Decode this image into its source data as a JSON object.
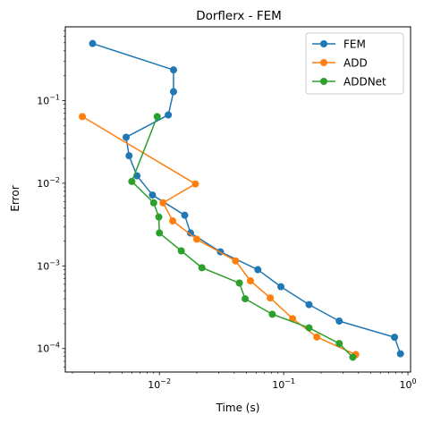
{
  "chart_data": {
    "type": "line",
    "title": "Dorflerx - FEM",
    "xlabel": "Time (s)",
    "ylabel": "Error",
    "xscale": "log",
    "yscale": "log",
    "xlim": [
      0.00175,
      1.05
    ],
    "ylim": [
      5.2e-05,
      0.78
    ],
    "grid": false,
    "legend_position": "top-right",
    "x_ticks": [
      {
        "value": 0.01,
        "base": "10",
        "exp": "−2"
      },
      {
        "value": 0.1,
        "base": "10",
        "exp": "−1"
      },
      {
        "value": 1,
        "base": "10",
        "exp": "0"
      }
    ],
    "y_ticks": [
      {
        "value": 0.0001,
        "base": "10",
        "exp": "−4"
      },
      {
        "value": 0.001,
        "base": "10",
        "exp": "−3"
      },
      {
        "value": 0.01,
        "base": "10",
        "exp": "−2"
      },
      {
        "value": 0.1,
        "base": "10",
        "exp": "−1"
      }
    ],
    "series": [
      {
        "name": "FEM",
        "color": "#1f77b4",
        "x": [
          0.0029,
          0.013,
          0.013,
          0.0118,
          0.0054,
          0.0057,
          0.0066,
          0.0088,
          0.016,
          0.0178,
          0.031,
          0.062,
          0.095,
          0.16,
          0.28,
          0.78,
          0.87
        ],
        "y": [
          0.49,
          0.235,
          0.128,
          0.067,
          0.036,
          0.0215,
          0.0123,
          0.0072,
          0.0041,
          0.0025,
          0.00148,
          0.0009,
          0.00056,
          0.00034,
          0.000215,
          0.000137,
          8.65e-05
        ]
      },
      {
        "name": "ADD",
        "color": "#ff7f0e",
        "x": [
          0.0024,
          0.0195,
          0.0107,
          0.0128,
          0.02,
          0.041,
          0.054,
          0.078,
          0.118,
          0.185,
          0.38
        ],
        "y": [
          0.064,
          0.0098,
          0.0058,
          0.0035,
          0.0021,
          0.00115,
          0.00066,
          0.00041,
          0.00023,
          0.000138,
          8.45e-05
        ]
      },
      {
        "name": "ADDNet",
        "color": "#2ca02c",
        "x": [
          0.0096,
          0.006,
          0.009,
          0.0099,
          0.01,
          0.015,
          0.022,
          0.044,
          0.049,
          0.081,
          0.16,
          0.28,
          0.36
        ],
        "y": [
          0.064,
          0.0105,
          0.0058,
          0.0039,
          0.0025,
          0.00152,
          0.00095,
          0.00062,
          0.0004,
          0.00026,
          0.000178,
          0.000115,
          7.85e-05
        ]
      }
    ]
  }
}
